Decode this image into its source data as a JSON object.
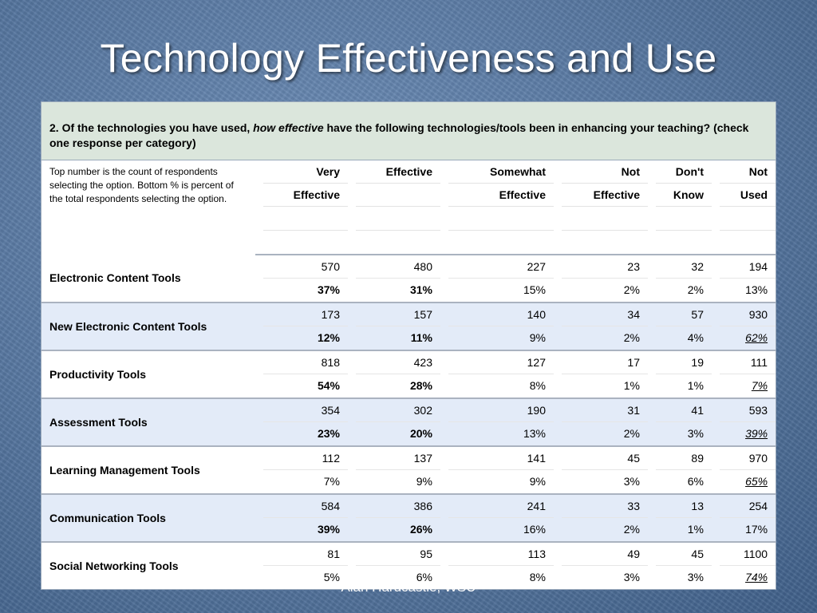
{
  "title": "Technology Effectiveness and Use",
  "question": {
    "prefix": "2. Of the technologies you have used, ",
    "emphasis": "how effective",
    "suffix": " have the following technologies/tools been in enhancing your teaching? (check one response per category)"
  },
  "note": "Top number is the count of respondents selecting the option. Bottom % is percent of the total respondents selecting the option.",
  "columns": [
    {
      "line1": "Very",
      "line2": "Effective"
    },
    {
      "line1": "Effective",
      "line2": ""
    },
    {
      "line1": "Somewhat",
      "line2": "Effective"
    },
    {
      "line1": "Not",
      "line2": "Effective"
    },
    {
      "line1": "Don't",
      "line2": "Know"
    },
    {
      "line1": "Not",
      "line2": "Used"
    }
  ],
  "rows": [
    {
      "label": "Electronic Content Tools",
      "counts": [
        "570",
        "480",
        "227",
        "23",
        "32",
        "194"
      ],
      "percents": [
        "37%",
        "31%",
        "15%",
        "2%",
        "2%",
        "13%"
      ]
    },
    {
      "label": "New Electronic Content Tools",
      "counts": [
        "173",
        "157",
        "140",
        "34",
        "57",
        "930"
      ],
      "percents": [
        "12%",
        "11%",
        "9%",
        "2%",
        "4%",
        "62%"
      ]
    },
    {
      "label": "Productivity Tools",
      "counts": [
        "818",
        "423",
        "127",
        "17",
        "19",
        "111"
      ],
      "percents": [
        "54%",
        "28%",
        "8%",
        "1%",
        "1%",
        "7%"
      ]
    },
    {
      "label": "Assessment Tools",
      "counts": [
        "354",
        "302",
        "190",
        "31",
        "41",
        "593"
      ],
      "percents": [
        "23%",
        "20%",
        "13%",
        "2%",
        "3%",
        "39%"
      ]
    },
    {
      "label": "Learning Management Tools",
      "counts": [
        "112",
        "137",
        "141",
        "45",
        "89",
        "970"
      ],
      "percents": [
        "7%",
        "9%",
        "9%",
        "3%",
        "6%",
        "65%"
      ]
    },
    {
      "label": "Communication Tools",
      "counts": [
        "584",
        "386",
        "241",
        "33",
        "13",
        "254"
      ],
      "percents": [
        "39%",
        "26%",
        "16%",
        "2%",
        "1%",
        "17%"
      ]
    },
    {
      "label": "Social Networking Tools",
      "counts": [
        "81",
        "95",
        "113",
        "49",
        "45",
        "1100"
      ],
      "percents": [
        "5%",
        "6%",
        "8%",
        "3%",
        "3%",
        "74%"
      ]
    }
  ],
  "footer": "Alan Hardcastle, WSU"
}
